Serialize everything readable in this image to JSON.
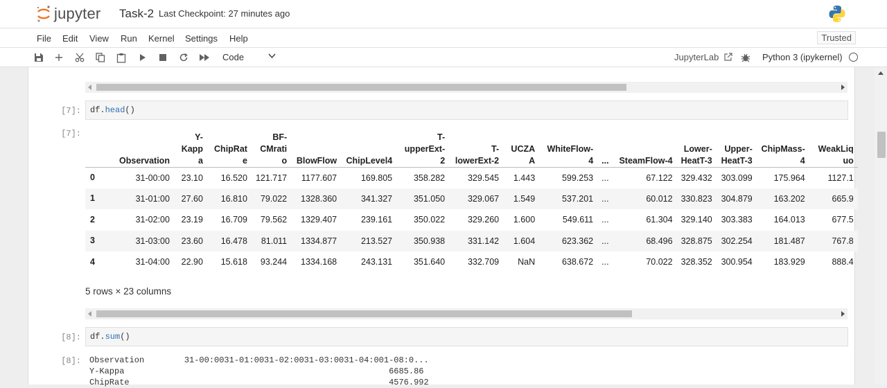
{
  "header": {
    "logo_text": "jupyter",
    "notebook_title": "Task-2",
    "checkpoint": "Last Checkpoint: 27 minutes ago"
  },
  "menu": [
    "File",
    "Edit",
    "View",
    "Run",
    "Kernel",
    "Settings",
    "Help"
  ],
  "trusted": "Trusted",
  "toolbar": {
    "icons": [
      "save-icon",
      "add-icon",
      "cut-icon",
      "copy-icon",
      "paste-icon",
      "run-icon",
      "stop-icon",
      "restart-icon",
      "fast-forward-icon"
    ],
    "cell_type": "Code",
    "jupyterlab_link": "JupyterLab",
    "kernel_name": "Python 3 (ipykernel)"
  },
  "cells": {
    "in7_prompt": "[7]:",
    "in7_code_obj": "df.",
    "in7_code_fn": "head",
    "in7_code_tail": "()",
    "out7_prompt": "[7]:",
    "rows_note": "5 rows × 23 columns",
    "in8_prompt": "[8]:",
    "in8_code_obj": "df.",
    "in8_code_fn": "sum",
    "in8_code_tail": "()",
    "out8_prompt": "[8]:",
    "out8_lines": [
      "Observation        31-00:0031-01:0031-02:0031-03:0031-04:001-08:0...",
      "Y-Kappa                                                     6685.86",
      "ChipRate                                                    4576.992"
    ]
  },
  "dataframe": {
    "columns": [
      "Observation",
      "Y-Kappa",
      "ChipRate",
      "BF-CMratio",
      "BlowFlow",
      "ChipLevel4",
      "T-upperExt-2",
      "T-lowerExt-2",
      "UCZAA",
      "WhiteFlow-4",
      "...",
      "SteamFlow-4",
      "Lower-HeatT-3",
      "Upper-HeatT-3",
      "ChipMass-4",
      "WeakLiquo"
    ],
    "rows": [
      {
        "index": "0",
        "values": [
          "31-00:00",
          "23.10",
          "16.520",
          "121.717",
          "1177.607",
          "169.805",
          "358.282",
          "329.545",
          "1.443",
          "599.253",
          "...",
          "67.122",
          "329.432",
          "303.099",
          "175.964",
          "1127.1"
        ]
      },
      {
        "index": "1",
        "values": [
          "31-01:00",
          "27.60",
          "16.810",
          "79.022",
          "1328.360",
          "341.327",
          "351.050",
          "329.067",
          "1.549",
          "537.201",
          "...",
          "60.012",
          "330.823",
          "304.879",
          "163.202",
          "665.9"
        ]
      },
      {
        "index": "2",
        "values": [
          "31-02:00",
          "23.19",
          "16.709",
          "79.562",
          "1329.407",
          "239.161",
          "350.022",
          "329.260",
          "1.600",
          "549.611",
          "...",
          "61.304",
          "329.140",
          "303.383",
          "164.013",
          "677.5"
        ]
      },
      {
        "index": "3",
        "values": [
          "31-03:00",
          "23.60",
          "16.478",
          "81.011",
          "1334.877",
          "213.527",
          "350.938",
          "331.142",
          "1.604",
          "623.362",
          "...",
          "68.496",
          "328.875",
          "302.254",
          "181.487",
          "767.8"
        ]
      },
      {
        "index": "4",
        "values": [
          "31-04:00",
          "22.90",
          "15.618",
          "93.244",
          "1334.168",
          "243.131",
          "351.640",
          "332.709",
          "NaN",
          "638.672",
          "...",
          "70.022",
          "328.352",
          "300.954",
          "183.929",
          "888.4"
        ]
      }
    ]
  }
}
